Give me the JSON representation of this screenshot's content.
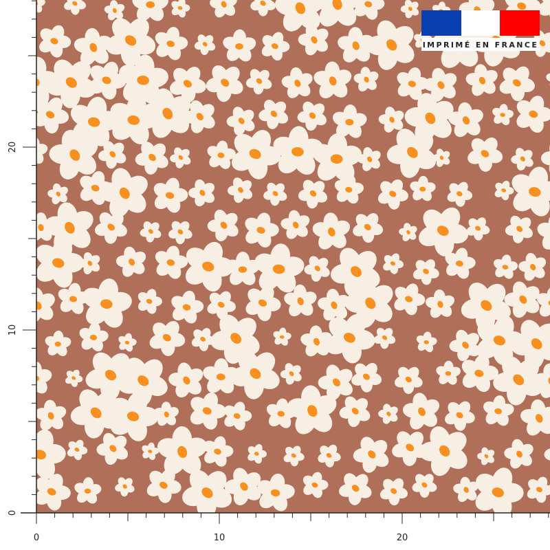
{
  "ruler": {
    "x_labels": [
      0,
      10,
      20
    ],
    "y_labels": [
      0,
      10,
      20
    ]
  },
  "badge": {
    "text": "IMPRIMÉ EN FRANCE"
  }
}
